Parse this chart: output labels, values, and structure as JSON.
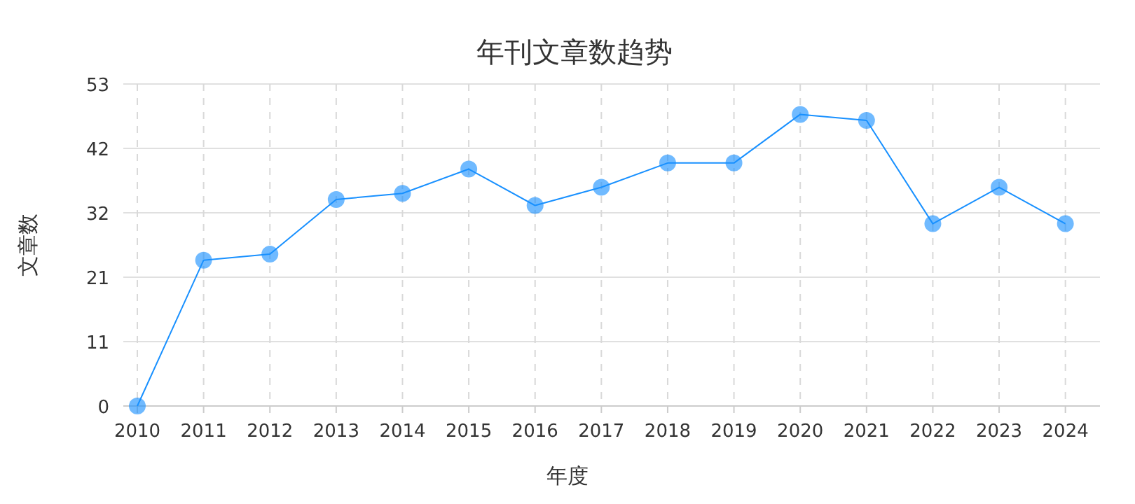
{
  "chart_data": {
    "type": "line",
    "title": "年刊文章数趋势",
    "xlabel": "年度",
    "ylabel": "文章数",
    "categories": [
      "2010",
      "2011",
      "2012",
      "2013",
      "2014",
      "2015",
      "2016",
      "2017",
      "2018",
      "2019",
      "2020",
      "2021",
      "2022",
      "2023",
      "2024"
    ],
    "series": [
      {
        "color": "#1890ff",
        "values": [
          0,
          24,
          25,
          34,
          35,
          39,
          33,
          36,
          40,
          40,
          48,
          47,
          30,
          36,
          30
        ]
      }
    ],
    "ylim": [
      0,
      53
    ],
    "yticks": [
      0,
      {
        "value": 10.6,
        "label": "11"
      },
      {
        "value": 21.2,
        "label": "21"
      },
      {
        "value": 31.8,
        "label": "32"
      },
      {
        "value": 42.4,
        "label": "42"
      },
      53
    ],
    "grid": true,
    "marker": "circle",
    "line_style": "solid"
  }
}
